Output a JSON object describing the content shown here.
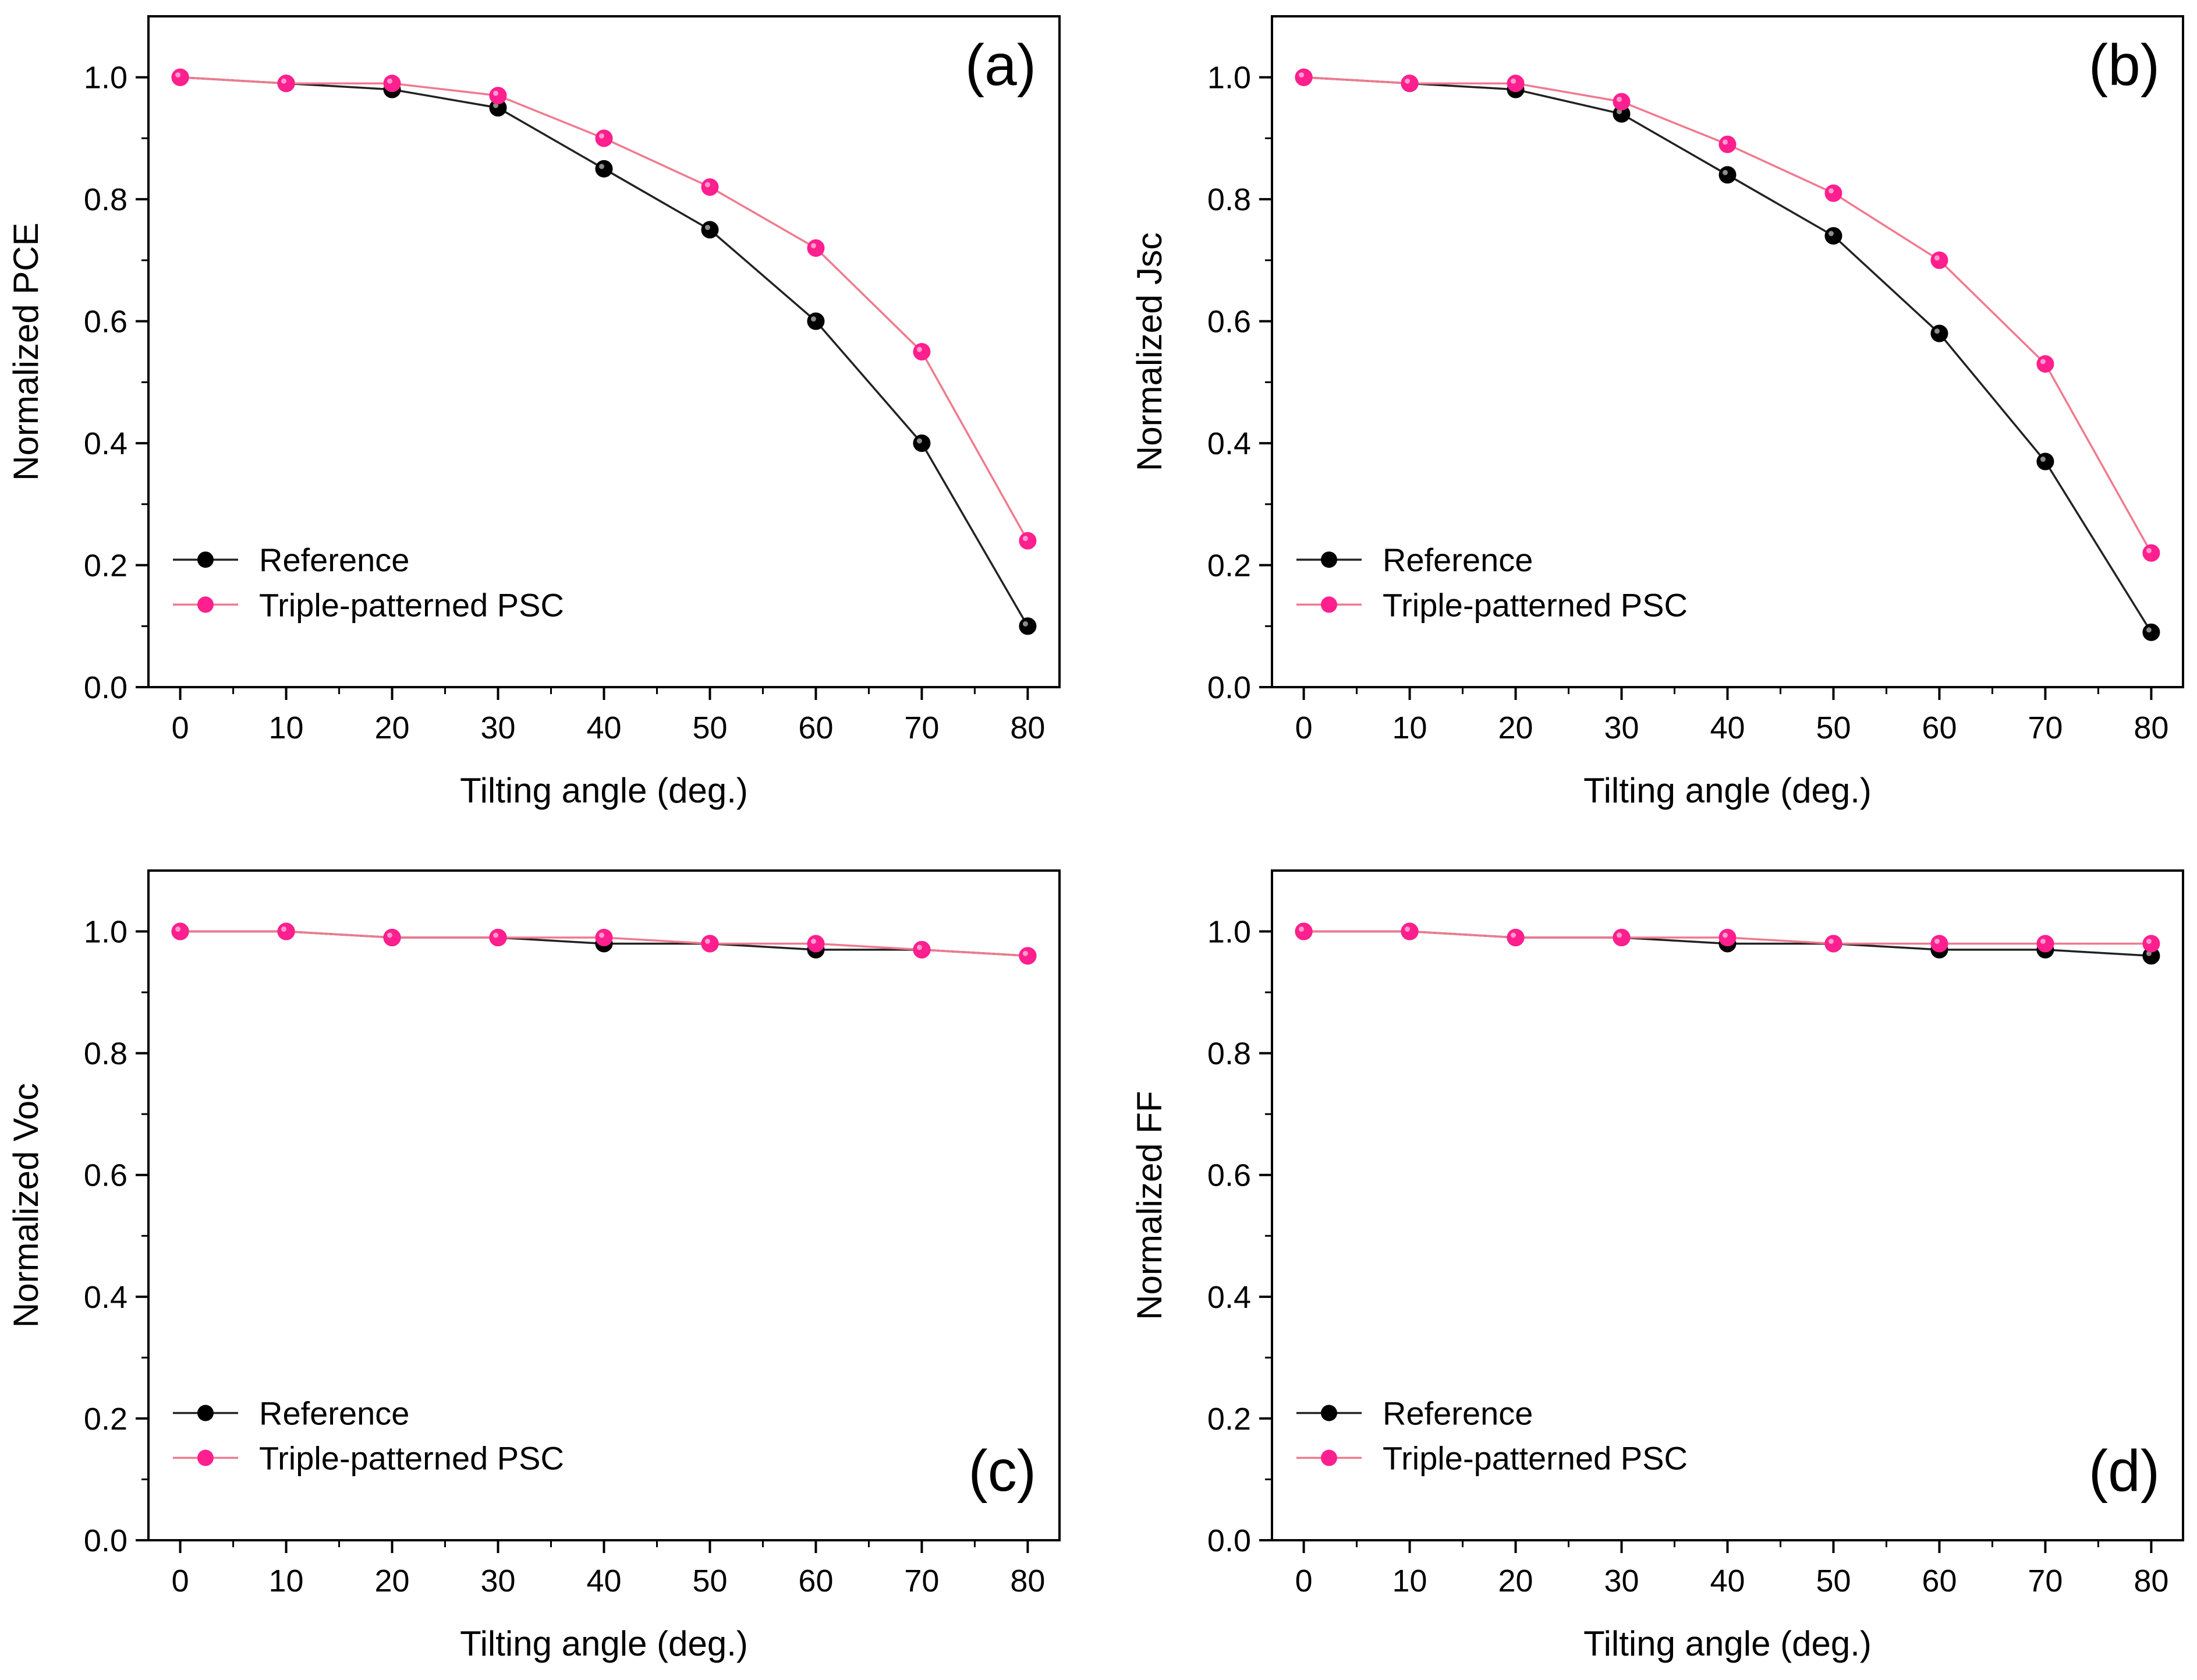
{
  "colors": {
    "reference_line": "#222222",
    "reference_marker": "#000000",
    "triple_line": "#f07a8e",
    "triple_marker": "#ff1f8e",
    "axes": "#000000",
    "background": "#ffffff"
  },
  "chart_data": [
    {
      "type": "line",
      "panel_label": "(a)",
      "xlabel": "Tilting angle (deg.)",
      "ylabel": "Normalized PCE",
      "xlim": [
        -3,
        83
      ],
      "ylim": [
        0.0,
        1.1
      ],
      "xticks": [
        0,
        10,
        20,
        30,
        40,
        50,
        60,
        70,
        80
      ],
      "yticks": [
        0.0,
        0.2,
        0.4,
        0.6,
        0.8,
        1.0
      ],
      "xtick_labels": [
        "0",
        "10",
        "20",
        "30",
        "40",
        "50",
        "60",
        "70",
        "80"
      ],
      "ytick_labels": [
        "0.0",
        "0.2",
        "0.4",
        "0.6",
        "0.8",
        "1.0"
      ],
      "label_position": "top-right",
      "legend_position": "bottom-left",
      "x": [
        0,
        10,
        20,
        30,
        40,
        50,
        60,
        70,
        80
      ],
      "series": [
        {
          "name": "Reference",
          "values": [
            1.0,
            0.99,
            0.98,
            0.95,
            0.85,
            0.75,
            0.6,
            0.4,
            0.1
          ]
        },
        {
          "name": "Triple-patterned PSC",
          "values": [
            1.0,
            0.99,
            0.99,
            0.97,
            0.9,
            0.82,
            0.72,
            0.55,
            0.24
          ]
        }
      ]
    },
    {
      "type": "line",
      "panel_label": "(b)",
      "xlabel": "Tilting angle (deg.)",
      "ylabel": "Normalized Jsc",
      "xlim": [
        -3,
        83
      ],
      "ylim": [
        0.0,
        1.1
      ],
      "xticks": [
        0,
        10,
        20,
        30,
        40,
        50,
        60,
        70,
        80
      ],
      "yticks": [
        0.0,
        0.2,
        0.4,
        0.6,
        0.8,
        1.0
      ],
      "xtick_labels": [
        "0",
        "10",
        "20",
        "30",
        "40",
        "50",
        "60",
        "70",
        "80"
      ],
      "ytick_labels": [
        "0.0",
        "0.2",
        "0.4",
        "0.6",
        "0.8",
        "1.0"
      ],
      "label_position": "top-right",
      "legend_position": "bottom-left",
      "x": [
        0,
        10,
        20,
        30,
        40,
        50,
        60,
        70,
        80
      ],
      "series": [
        {
          "name": "Reference",
          "values": [
            1.0,
            0.99,
            0.98,
            0.94,
            0.84,
            0.74,
            0.58,
            0.37,
            0.09
          ]
        },
        {
          "name": "Triple-patterned PSC",
          "values": [
            1.0,
            0.99,
            0.99,
            0.96,
            0.89,
            0.81,
            0.7,
            0.53,
            0.22
          ]
        }
      ]
    },
    {
      "type": "line",
      "panel_label": "(c)",
      "xlabel": "Tilting angle (deg.)",
      "ylabel": "Normalized Voc",
      "xlim": [
        -3,
        83
      ],
      "ylim": [
        0.0,
        1.1
      ],
      "xticks": [
        0,
        10,
        20,
        30,
        40,
        50,
        60,
        70,
        80
      ],
      "yticks": [
        0.0,
        0.2,
        0.4,
        0.6,
        0.8,
        1.0
      ],
      "xtick_labels": [
        "0",
        "10",
        "20",
        "30",
        "40",
        "50",
        "60",
        "70",
        "80"
      ],
      "ytick_labels": [
        "0.0",
        "0.2",
        "0.4",
        "0.6",
        "0.8",
        "1.0"
      ],
      "label_position": "bottom-right",
      "legend_position": "bottom-left",
      "x": [
        0,
        10,
        20,
        30,
        40,
        50,
        60,
        70,
        80
      ],
      "series": [
        {
          "name": "Reference",
          "values": [
            1.0,
            1.0,
            0.99,
            0.99,
            0.98,
            0.98,
            0.97,
            0.97,
            0.96
          ]
        },
        {
          "name": "Triple-patterned PSC",
          "values": [
            1.0,
            1.0,
            0.99,
            0.99,
            0.99,
            0.98,
            0.98,
            0.97,
            0.96
          ]
        }
      ]
    },
    {
      "type": "line",
      "panel_label": "(d)",
      "xlabel": "Tilting angle (deg.)",
      "ylabel": "Normalized FF",
      "xlim": [
        -3,
        83
      ],
      "ylim": [
        0.0,
        1.1
      ],
      "xticks": [
        0,
        10,
        20,
        30,
        40,
        50,
        60,
        70,
        80
      ],
      "yticks": [
        0.0,
        0.2,
        0.4,
        0.6,
        0.8,
        1.0
      ],
      "xtick_labels": [
        "0",
        "10",
        "20",
        "30",
        "40",
        "50",
        "60",
        "70",
        "80"
      ],
      "ytick_labels": [
        "0.0",
        "0.2",
        "0.4",
        "0.6",
        "0.8",
        "1.0"
      ],
      "label_position": "bottom-right",
      "legend_position": "bottom-left",
      "x": [
        0,
        10,
        20,
        30,
        40,
        50,
        60,
        70,
        80
      ],
      "series": [
        {
          "name": "Reference",
          "values": [
            1.0,
            1.0,
            0.99,
            0.99,
            0.98,
            0.98,
            0.97,
            0.97,
            0.96
          ]
        },
        {
          "name": "Triple-patterned PSC",
          "values": [
            1.0,
            1.0,
            0.99,
            0.99,
            0.99,
            0.98,
            0.98,
            0.98,
            0.98
          ]
        }
      ]
    }
  ]
}
